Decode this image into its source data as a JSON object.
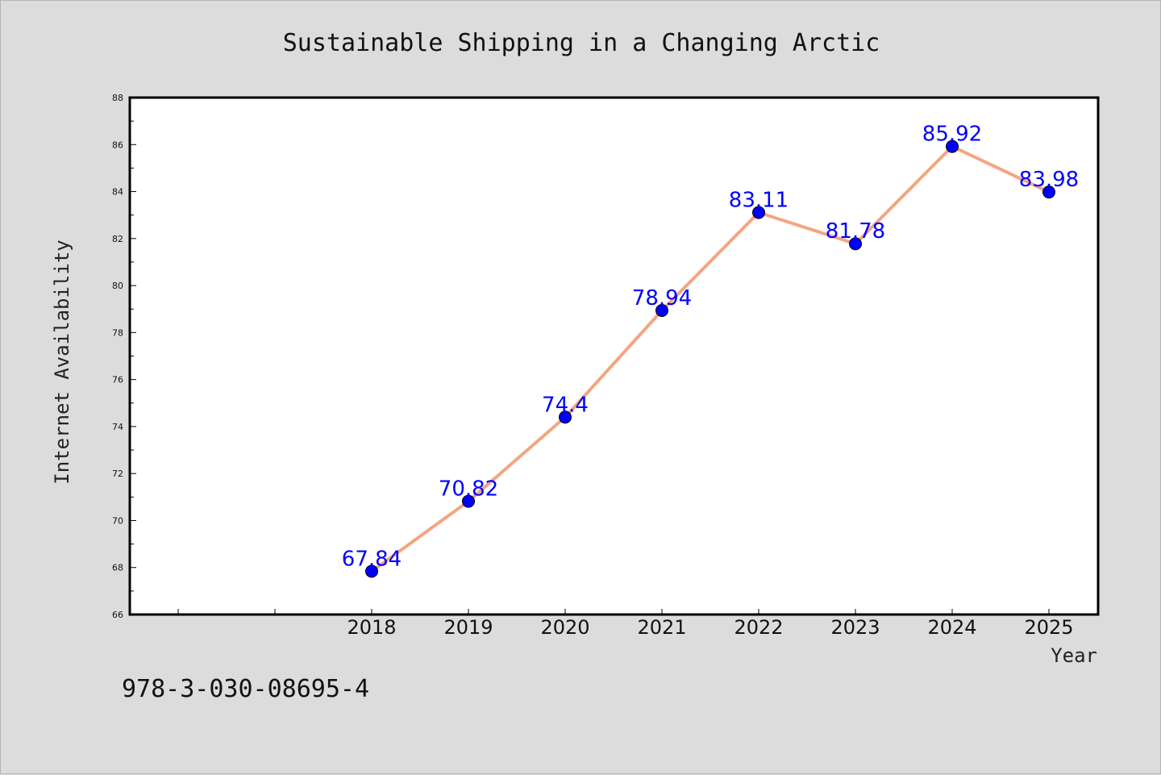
{
  "chart_data": {
    "type": "line",
    "title": "Sustainable Shipping in a Changing Arctic",
    "xlabel": "Year",
    "ylabel": "Internet Availability",
    "categories": [
      "2018",
      "2019",
      "2020",
      "2021",
      "2022",
      "2023",
      "2024",
      "2025"
    ],
    "series": [
      {
        "values": [
          67.84,
          70.82,
          74.4,
          78.94,
          83.11,
          81.78,
          85.92,
          83.98
        ],
        "data_labels": [
          "67.84",
          "70.82",
          "74.4",
          "78.94",
          "83.11",
          "81.78",
          "85.92",
          "83.98"
        ]
      }
    ],
    "ylim": [
      66,
      88
    ],
    "y_ticks": [
      "66",
      "68",
      "70",
      "72",
      "74",
      "76",
      "78",
      "80",
      "82",
      "84",
      "86",
      "88"
    ],
    "grid": false,
    "line_color": "#f4a582",
    "marker_color": "#0000ff",
    "label_color": "#0000ff",
    "annotation": "978-3-030-08695-4"
  }
}
